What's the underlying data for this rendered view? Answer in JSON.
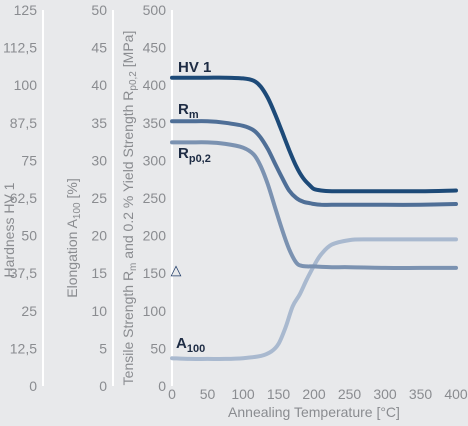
{
  "chart_data": {
    "type": "line",
    "xlabel": "Annealing Temperature [°C]",
    "x_ticks": [
      "0",
      "50",
      "100",
      "150",
      "200",
      "250",
      "300",
      "350",
      "400"
    ],
    "xlim": [
      0,
      400
    ],
    "y_axes": [
      {
        "id": "hardness",
        "label_main": "Hardness HV 1",
        "label_sub": "",
        "label_tail": "",
        "ticks": [
          "125",
          "112,5",
          "100",
          "87,5",
          "75",
          "62,5",
          "50",
          "37,5",
          "25",
          "12,5",
          "0"
        ],
        "ylim": [
          0,
          125
        ]
      },
      {
        "id": "elongation",
        "label_main": "Elongation A",
        "label_sub": "100",
        "label_tail": " [%]",
        "ticks": [
          "50",
          "45",
          "40",
          "35",
          "30",
          "25",
          "20",
          "15",
          "10",
          "5",
          "0"
        ],
        "ylim": [
          0,
          50
        ]
      },
      {
        "id": "strength",
        "label_main": "Tensile Strength R",
        "label_sub": "m",
        "label_mid": " and 0.2 % Yield Strength R",
        "label_sub2": "p0,2",
        "label_tail": " [MPa]",
        "ticks": [
          "500",
          "450",
          "400",
          "350",
          "300",
          "250",
          "200",
          "150",
          "100",
          "50",
          "0"
        ],
        "ylim": [
          0,
          500
        ]
      }
    ],
    "grid": false,
    "series": [
      {
        "name_main": "HV 1",
        "name_sub": "",
        "axis": "strength",
        "color": "#1d4a78",
        "x": [
          0,
          25,
          50,
          75,
          100,
          115,
          125,
          135,
          145,
          155,
          165,
          175,
          185,
          195,
          200,
          210,
          225,
          250,
          300,
          350,
          400
        ],
        "y": [
          410,
          410,
          410,
          410,
          409,
          406,
          398,
          383,
          362,
          338,
          314,
          292,
          276,
          266,
          262,
          260,
          259,
          259,
          259,
          259,
          260
        ]
      },
      {
        "name_main": "R",
        "name_sub": "m",
        "axis": "strength",
        "color": "#4f6f97",
        "x": [
          0,
          25,
          50,
          75,
          100,
          115,
          125,
          135,
          145,
          155,
          165,
          175,
          185,
          195,
          200,
          210,
          225,
          250,
          300,
          350,
          400
        ],
        "y": [
          352,
          352,
          352,
          350,
          346,
          340,
          330,
          315,
          296,
          277,
          260,
          250,
          245,
          243,
          242,
          241,
          241,
          241,
          241,
          241,
          242
        ]
      },
      {
        "name_main": "R",
        "name_sub": "p0,2",
        "axis": "strength",
        "color": "#7b92b1",
        "x": [
          0,
          25,
          50,
          75,
          100,
          115,
          125,
          135,
          145,
          155,
          165,
          175,
          182,
          190,
          200,
          225,
          250,
          300,
          350,
          400
        ],
        "y": [
          324,
          324,
          324,
          322,
          317,
          308,
          292,
          268,
          238,
          208,
          182,
          164,
          160,
          159,
          159,
          158,
          158,
          157,
          157,
          157
        ]
      },
      {
        "name_main": "A",
        "name_sub": "100",
        "axis": "strength",
        "color": "#a9b9cf",
        "x": [
          0,
          25,
          50,
          75,
          100,
          125,
          140,
          150,
          160,
          170,
          180,
          190,
          200,
          210,
          225,
          250,
          275,
          300,
          350,
          400
        ],
        "y": [
          37,
          36,
          36,
          36,
          37,
          40,
          46,
          56,
          78,
          106,
          122,
          142,
          160,
          175,
          188,
          194,
          195,
          195,
          195,
          195
        ]
      }
    ],
    "marker": {
      "symbol": "△",
      "axis": "strength",
      "y": 155
    }
  }
}
